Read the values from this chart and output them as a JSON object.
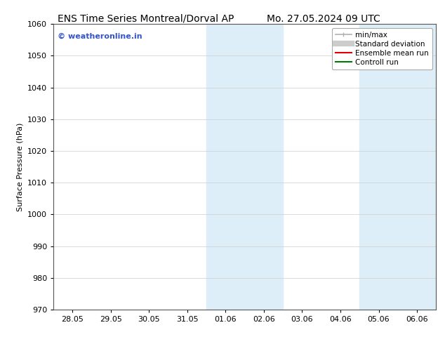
{
  "title_left": "ENS Time Series Montreal/Dorval AP",
  "title_right": "Mo. 27.05.2024 09 UTC",
  "ylabel": "Surface Pressure (hPa)",
  "ylim": [
    970,
    1060
  ],
  "yticks": [
    970,
    980,
    990,
    1000,
    1010,
    1020,
    1030,
    1040,
    1050,
    1060
  ],
  "xtick_labels": [
    "28.05",
    "29.05",
    "30.05",
    "31.05",
    "01.06",
    "02.06",
    "03.06",
    "04.06",
    "05.06",
    "06.06"
  ],
  "xtick_positions": [
    0,
    1,
    2,
    3,
    4,
    5,
    6,
    7,
    8,
    9
  ],
  "xlim": [
    -0.5,
    9.5
  ],
  "shaded_bands": [
    {
      "x_start": 3.5,
      "x_end": 5.5,
      "color": "#ddeef8"
    },
    {
      "x_start": 7.5,
      "x_end": 9.5,
      "color": "#ddeef8"
    }
  ],
  "watermark_text": "© weatheronline.in",
  "watermark_color": "#3355cc",
  "legend_entries": [
    {
      "label": "min/max",
      "color": "#b0b0b0",
      "lw": 1.2,
      "style": "line_with_caps"
    },
    {
      "label": "Standard deviation",
      "color": "#cccccc",
      "lw": 6,
      "style": "thick_line"
    },
    {
      "label": "Ensemble mean run",
      "color": "#dd0000",
      "lw": 1.5,
      "style": "line"
    },
    {
      "label": "Controll run",
      "color": "#007700",
      "lw": 1.5,
      "style": "line"
    }
  ],
  "background_color": "#ffffff",
  "grid_color": "#cccccc",
  "title_fontsize": 10,
  "tick_fontsize": 8,
  "ylabel_fontsize": 8,
  "watermark_fontsize": 8,
  "legend_fontsize": 7.5
}
